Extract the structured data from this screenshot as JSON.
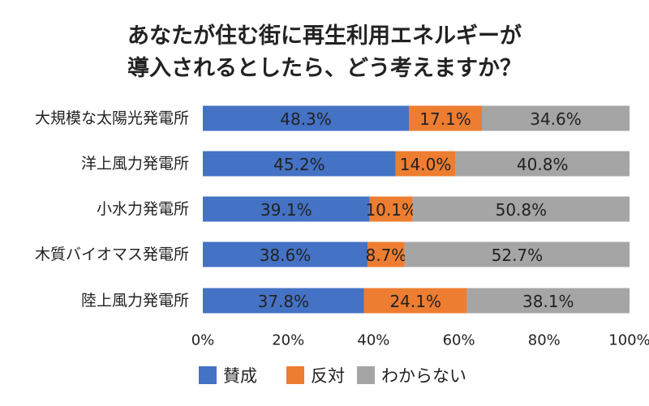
{
  "chart_data": {
    "type": "bar",
    "orientation": "horizontal",
    "stacked": true,
    "normalized": true,
    "title": [
      "あなたが住む街に再生利用エネルギーが",
      "導入されるとしたら、どう考えますか？"
    ],
    "categories": [
      "大規模な太陽光発電所",
      "洋上風力発電所",
      "小水力発電所",
      "木質バイオマス発電所",
      "陸上風力発電所"
    ],
    "series": [
      {
        "name": "賛成",
        "color": "#4472C4",
        "values": [
          48.3,
          45.2,
          39.1,
          38.6,
          37.8
        ],
        "labels": [
          "48.3%",
          "45.2%",
          "39.1%",
          "38.6%",
          "37.8%"
        ]
      },
      {
        "name": "反対",
        "color": "#ED7D31",
        "values": [
          17.1,
          14.0,
          10.1,
          8.7,
          24.1
        ],
        "labels": [
          "17.1%",
          "14.0%",
          "10.1%",
          "8.7%",
          "24.1%"
        ]
      },
      {
        "name": "わからない",
        "color": "#A5A5A5",
        "values": [
          34.6,
          40.8,
          50.8,
          52.7,
          38.1
        ],
        "labels": [
          "34.6%",
          "40.8%",
          "50.8%",
          "52.7%",
          "38.1%"
        ]
      }
    ],
    "xlim": [
      0,
      100
    ],
    "xticks": [
      0,
      20,
      40,
      60,
      80,
      100
    ],
    "xtick_labels": [
      "0%",
      "20%",
      "40%",
      "60%",
      "80%",
      "100%"
    ],
    "legend_position": "bottom",
    "grid": false
  }
}
